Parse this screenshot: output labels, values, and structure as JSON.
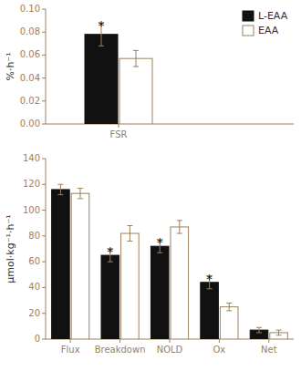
{
  "chart_data": [
    {
      "type": "bar",
      "categories": [
        "FSR"
      ],
      "y_label": "%·h⁻¹",
      "series": [
        {
          "name": "L-EAA",
          "color": "#111111",
          "values": [
            0.078
          ],
          "errors": [
            0.01
          ],
          "significant": [
            true
          ]
        },
        {
          "name": "EAA",
          "color": "#ffffff",
          "values": [
            0.057
          ],
          "errors": [
            0.007
          ]
        }
      ],
      "annotation": "*",
      "ylim": [
        0.0,
        0.1
      ],
      "yticks": [
        {
          "value": 0.0,
          "label": "0.00"
        },
        0.02,
        0.04,
        0.06,
        0.08,
        {
          "value": 0.1,
          "label": "0.10"
        }
      ],
      "legend": "upper right"
    },
    {
      "type": "bar",
      "categories": [
        "Flux",
        "Breakdown",
        "NOLD",
        "Ox",
        "Net"
      ],
      "y_label": "μmol·kg⁻¹·h⁻¹",
      "series": [
        {
          "color": "#111111",
          "values": [
            116,
            65,
            72,
            44,
            7
          ],
          "errors": [
            4,
            5,
            5,
            5,
            2
          ],
          "significant": [
            false,
            true,
            true,
            true,
            false
          ]
        },
        {
          "color": "#ffffff",
          "values": [
            113,
            82,
            87,
            25,
            5
          ],
          "errors": [
            4,
            6,
            5,
            3,
            2
          ]
        }
      ],
      "annotation": "*",
      "ylim": [
        0,
        140
      ],
      "yticks": [
        0,
        20,
        40,
        60,
        80,
        100,
        120,
        140
      ]
    }
  ]
}
